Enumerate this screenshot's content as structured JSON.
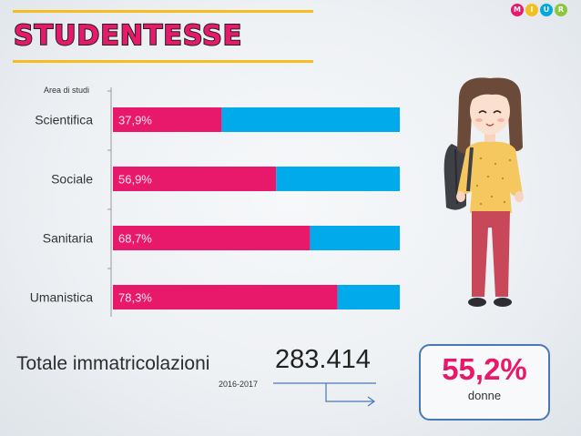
{
  "header": {
    "title": "Studentesse"
  },
  "logo": {
    "letters": [
      "M",
      "I",
      "U",
      "R"
    ],
    "colors": [
      "#e8196b",
      "#f4bf1e",
      "#00a9e0",
      "#8cc63f"
    ]
  },
  "chart_data": {
    "type": "bar",
    "orientation": "horizontal",
    "stacked": true,
    "ylabel": "Area di studi",
    "categories": [
      "Scientifica",
      "Sociale",
      "Sanitaria",
      "Umanistica"
    ],
    "series": [
      {
        "values": [
          37.9,
          56.9,
          68.7,
          78.3
        ],
        "color": "#e8196b"
      },
      {
        "values": [
          62.1,
          43.1,
          31.3,
          21.7
        ],
        "color": "#00aaeb"
      }
    ],
    "data_labels": [
      "37,9%",
      "56,9%",
      "68,7%",
      "78,3%"
    ],
    "xlim": [
      0,
      100
    ],
    "grid": false,
    "legend": "none"
  },
  "totals": {
    "label": "Totale immatricolazioni",
    "year": "2016-2017",
    "value": "283.414"
  },
  "women": {
    "value": "55,2%",
    "label": "donne"
  },
  "colors": {
    "accent_pink": "#e8196b",
    "accent_blue": "#00aaeb",
    "frame_blue": "#4a78b6",
    "highlight_yellow": "#f4bf1e"
  }
}
